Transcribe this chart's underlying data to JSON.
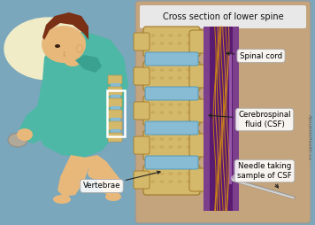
{
  "bg_color": "#7ba7bc",
  "panel_bg": "#c4a47c",
  "panel_border": "#999999",
  "title": "Cross section of lower spine",
  "title_fontsize": 7.0,
  "label_spinal_cord": "Spinal cord",
  "label_csf": "Cerebrospinal\nfluid (CSF)",
  "label_needle": "Needle taking\nsample of CSF",
  "label_vertebrae": "Vertebrae",
  "watermark": "AbouKidsHealth.ca",
  "vertebra_color": "#d4b96a",
  "vertebra_dark": "#b89040",
  "vertebra_edge": "#a07828",
  "disc_color": "#88bbd4",
  "disc_edge": "#5599bb",
  "spinal_outer_purple": "#7b3f8c",
  "spinal_inner_purple": "#5a1a70",
  "nerve_gold": "#cc8800",
  "nerve_orange": "#e09020",
  "skin_color": "#c8a882",
  "child_skin": "#e8b87a",
  "child_shirt": "#4db8a5",
  "child_hair": "#7a3015",
  "child_skin_dark": "#d4a060",
  "pillow_color": "#f0ecc8",
  "bed_color": "#6b8cbf",
  "needle_color": "#c8c8c8",
  "needle_dark": "#888888",
  "box_bg": "#ffffff",
  "box_edge": "#aaaaaa",
  "title_bg": "#e8e8e8",
  "arrow_color": "#222222"
}
